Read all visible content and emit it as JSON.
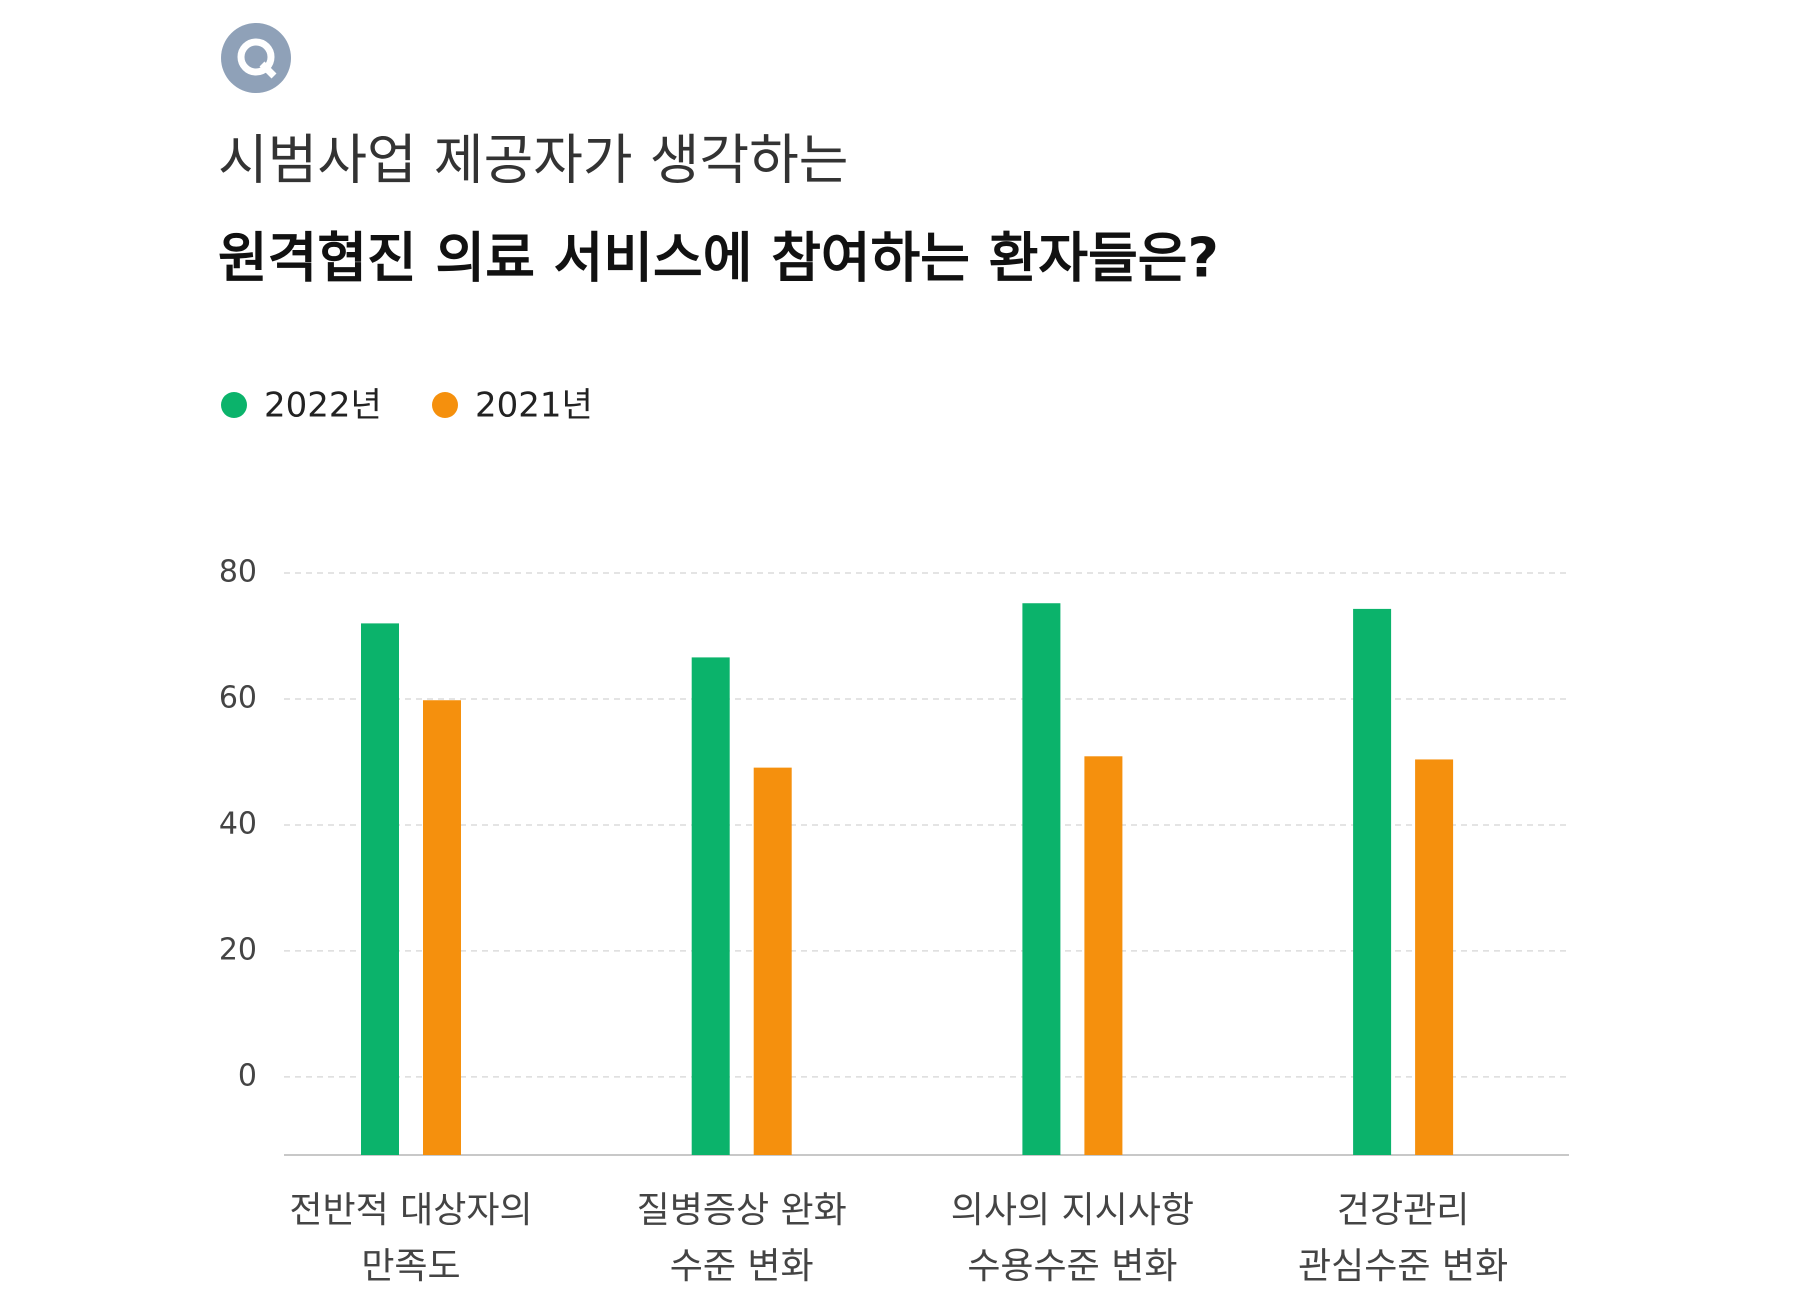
{
  "chart_data": {
    "type": "bar",
    "title": "시범사업 제공자가 생각하는",
    "subtitle": "원격협진 의료 서비스에 참여하는 환자들은?",
    "categories": [
      [
        "전반적 대상자의",
        "만족도"
      ],
      [
        "질병증상 완화",
        "수준 변화"
      ],
      [
        "의사의 지시사항",
        "수용수준 변화"
      ],
      [
        "건강관리",
        "관심수준 변화"
      ]
    ],
    "series": [
      {
        "name": "2022년",
        "color": "#0bb36b",
        "values": [
          72,
          66.6,
          75.2,
          74.3
        ]
      },
      {
        "name": "2021년",
        "color": "#f5900d",
        "values": [
          59.8,
          49.1,
          50.9,
          50.4
        ]
      }
    ],
    "ylim": [
      -12.4,
      80
    ],
    "yticks": [
      0,
      20,
      40,
      60,
      80
    ],
    "grid": true
  }
}
